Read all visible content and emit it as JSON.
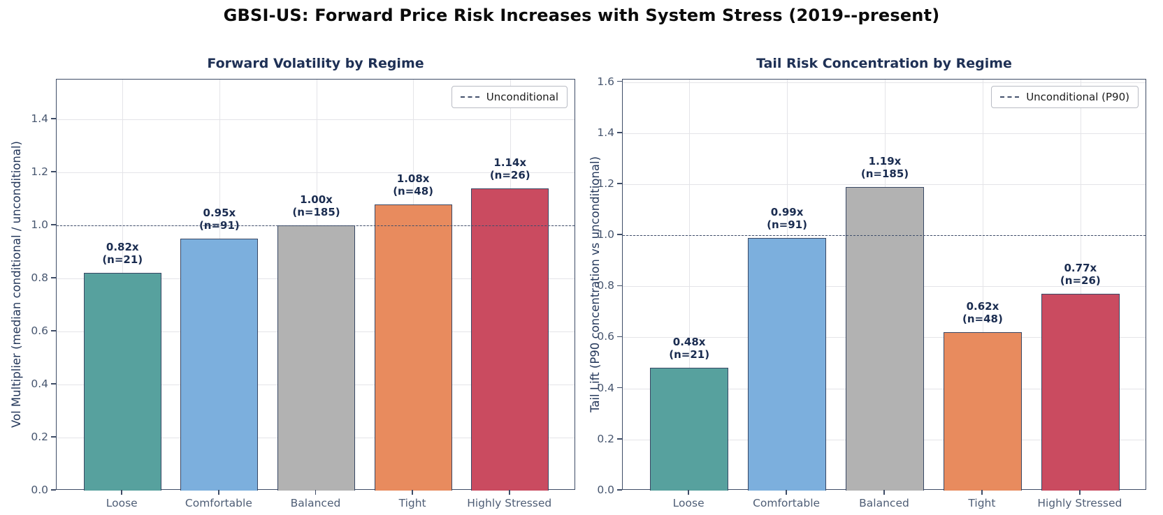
{
  "figure": {
    "title": "GBSI-US: Forward Price Risk Increases with System Stress (2019--present)"
  },
  "colors": {
    "bar_teal": "#57a19e",
    "bar_blue": "#7cafdd",
    "bar_gray": "#b2b2b2",
    "bar_orange": "#e88b5e",
    "bar_red": "#ca4b60",
    "bar_edge": "#384764",
    "reference_line": "#3f4e6b",
    "title_navy": "#1e3055",
    "annotation_navy": "#1a2c50",
    "tick_label": "#47566f"
  },
  "chart_data": [
    {
      "type": "bar",
      "title": "Forward Volatility by Regime",
      "ylabel": "Vol Multiplier (median conditional / unconditional)",
      "xlabel": "",
      "categories": [
        "Loose",
        "Comfortable",
        "Balanced",
        "Tight",
        "Highly Stressed"
      ],
      "values": [
        0.82,
        0.95,
        1.0,
        1.08,
        1.14
      ],
      "n_counts": [
        21,
        91,
        185,
        48,
        26
      ],
      "bar_labels": [
        [
          "0.82x",
          "(n=21)"
        ],
        [
          "0.95x",
          "(n=91)"
        ],
        [
          "1.00x",
          "(n=185)"
        ],
        [
          "1.08x",
          "(n=48)"
        ],
        [
          "1.14x",
          "(n=26)"
        ]
      ],
      "bar_colors": [
        "#57a19e",
        "#7cafdd",
        "#b2b2b2",
        "#e88b5e",
        "#ca4b60"
      ],
      "ylim": [
        0,
        1.55
      ],
      "yticks": [
        "0.0",
        "0.2",
        "0.4",
        "0.6",
        "0.8",
        "1.0",
        "1.2",
        "1.4"
      ],
      "reference_line": {
        "value": 1.0,
        "style": "dashed"
      },
      "legend": {
        "label": "Unconditional",
        "position": "upper-right"
      },
      "grid": true
    },
    {
      "type": "bar",
      "title": "Tail Risk Concentration by Regime",
      "ylabel": "Tail Lift (P90 concentration vs unconditional)",
      "xlabel": "",
      "categories": [
        "Loose",
        "Comfortable",
        "Balanced",
        "Tight",
        "Highly Stressed"
      ],
      "values": [
        0.48,
        0.99,
        1.19,
        0.62,
        0.77
      ],
      "n_counts": [
        21,
        91,
        185,
        48,
        26
      ],
      "bar_labels": [
        [
          "0.48x",
          "(n=21)"
        ],
        [
          "0.99x",
          "(n=91)"
        ],
        [
          "1.19x",
          "(n=185)"
        ],
        [
          "0.62x",
          "(n=48)"
        ],
        [
          "0.77x",
          "(n=26)"
        ]
      ],
      "bar_colors": [
        "#57a19e",
        "#7cafdd",
        "#b2b2b2",
        "#e88b5e",
        "#ca4b60"
      ],
      "ylim": [
        0,
        1.61
      ],
      "yticks": [
        "0.0",
        "0.2",
        "0.4",
        "0.6",
        "0.8",
        "1.0",
        "1.2",
        "1.4",
        "1.6"
      ],
      "reference_line": {
        "value": 1.0,
        "style": "dashed"
      },
      "legend": {
        "label": "Unconditional (P90)",
        "position": "upper-right"
      },
      "grid": true
    }
  ]
}
